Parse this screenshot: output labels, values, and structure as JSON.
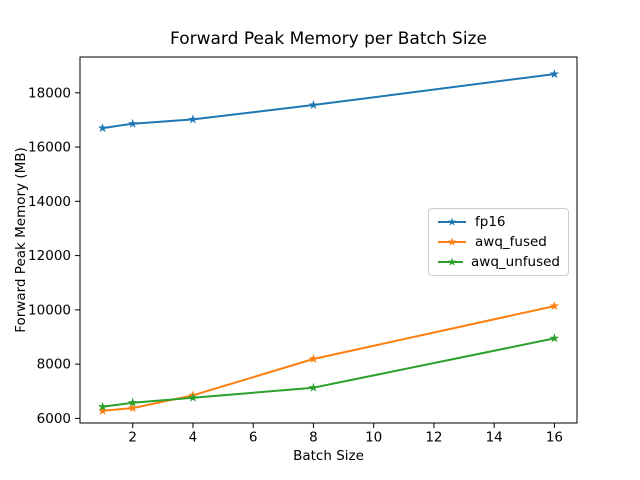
{
  "figure": {
    "background": "#ffffff",
    "text_color": "#000000",
    "spine_color": "#000000",
    "legend_border_color": "#cccccc"
  },
  "chart_data": {
    "type": "line",
    "title": "Forward Peak Memory per Batch Size",
    "xlabel": "Batch Size",
    "ylabel": "Forward Peak Memory (MB)",
    "x": [
      1,
      2,
      4,
      8,
      16
    ],
    "series": [
      {
        "name": "fp16",
        "color": "#1f77b4",
        "marker": "star",
        "values": [
          16700,
          16860,
          17020,
          17550,
          18690
        ]
      },
      {
        "name": "awq_fused",
        "color": "#ff7f0e",
        "marker": "star",
        "values": [
          6280,
          6380,
          6850,
          8190,
          10140
        ]
      },
      {
        "name": "awq_unfused",
        "color": "#2ca02c",
        "marker": "star",
        "values": [
          6430,
          6580,
          6760,
          7130,
          8950
        ]
      }
    ],
    "xlim": [
      0.25,
      16.75
    ],
    "ylim": [
      5830,
      19320
    ],
    "x_ticks": [
      2,
      4,
      6,
      8,
      10,
      12,
      14,
      16
    ],
    "y_ticks": [
      6000,
      8000,
      10000,
      12000,
      14000,
      16000,
      18000
    ],
    "grid": false,
    "legend_position": "center-right",
    "legend_entries": [
      "fp16",
      "awq_fused",
      "awq_unfused"
    ]
  }
}
